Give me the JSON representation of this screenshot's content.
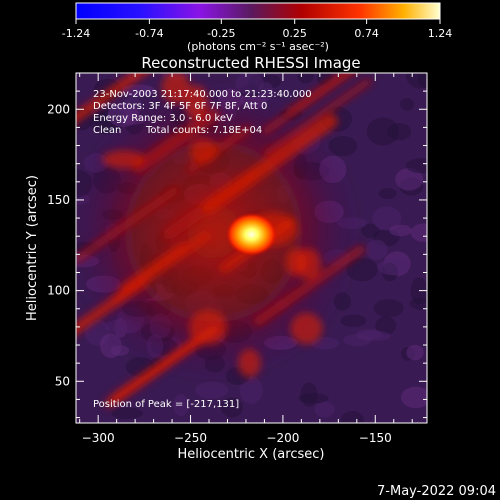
{
  "chart_data": {
    "type": "heatmap",
    "title": "Reconstructed RHESSI Image",
    "xlabel": "Heliocentric X (arcsec)",
    "ylabel": "Heliocentric Y (arcsec)",
    "xlim": [
      -312,
      -122
    ],
    "ylim": [
      27,
      220
    ],
    "x_ticks": [
      -300,
      -250,
      -200,
      -150
    ],
    "y_ticks": [
      50,
      100,
      150,
      200
    ],
    "colorbar": {
      "ticks": [
        -1.24,
        -0.74,
        -0.25,
        0.25,
        0.74,
        1.24
      ],
      "tick_labels": [
        "-1.24",
        "-0.74",
        "-0.25",
        "0.25",
        "0.74",
        "1.24"
      ],
      "range": [
        -1.24,
        1.24
      ],
      "unit_label": "(photons cm⁻² s⁻¹ asec⁻²)"
    },
    "annotations": [
      "23-Nov-2003 21:17:40.000 to 21:23:40.000",
      "Detectors: 3F 4F 5F 6F 7F 8F, Att 0",
      "Energy Range: 3.0 - 6.0 keV",
      "Clean",
      "Total counts: 7.18E+04"
    ],
    "peak_label": "Position of Peak = [-217,131]",
    "peak_position": [
      -217,
      131
    ],
    "peak_value": 1.24,
    "background_value": -0.25,
    "emission_region": {
      "center": [
        -250,
        150
      ],
      "extent_x": [
        -305,
        -170
      ],
      "extent_y": [
        50,
        215
      ],
      "level": 0.35,
      "streak_direction": "diagonal"
    }
  },
  "footer": {
    "timestamp": "7-May-2022 09:04"
  },
  "colors": {
    "background": "#000000",
    "foreground": "#ffffff",
    "colormap": [
      "#0000ff",
      "#7a0cff",
      "#3c1a55",
      "#cc0000",
      "#ff5500",
      "#ffff00",
      "#ffffff"
    ]
  }
}
